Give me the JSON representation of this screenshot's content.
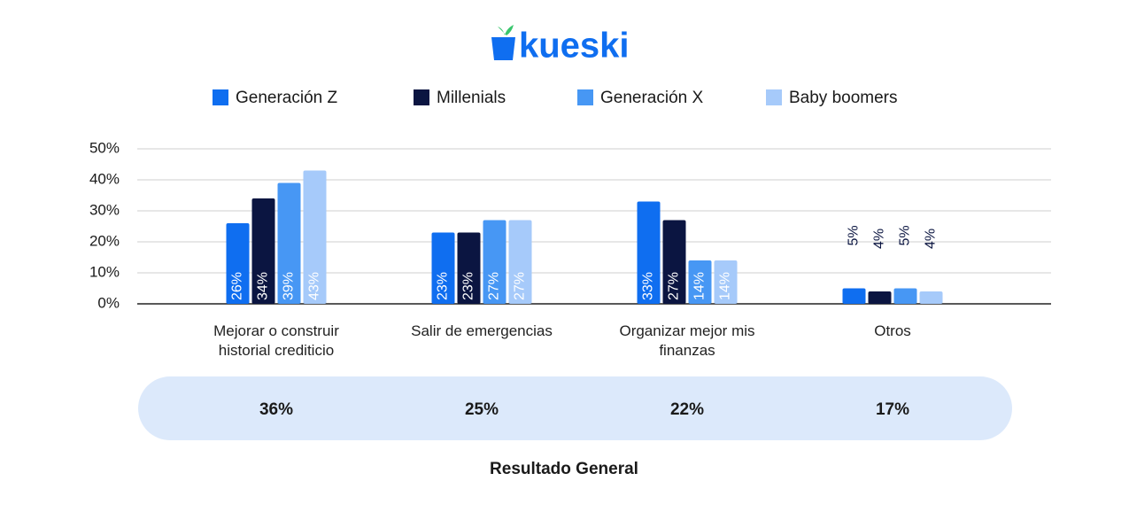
{
  "brand": "kueski",
  "chart_data": {
    "type": "bar",
    "categories": [
      "Mejorar o construir historial crediticio",
      "Salir de emergencias",
      "Organizar mejor mis finanzas",
      "Otros"
    ],
    "series": [
      {
        "name": "Generación Z",
        "color": "#0f6ef0",
        "values": [
          26,
          23,
          33,
          5
        ],
        "value_labels": [
          "26%",
          "23%",
          "33%",
          "5%"
        ]
      },
      {
        "name": "Millenials",
        "color": "#0b1541",
        "values": [
          34,
          23,
          27,
          4
        ],
        "value_labels": [
          "34%",
          "23%",
          "27%",
          "4%"
        ]
      },
      {
        "name": "Generación X",
        "color": "#4797f4",
        "values": [
          39,
          27,
          14,
          5
        ],
        "value_labels": [
          "39%",
          "27%",
          "14%",
          "5%"
        ]
      },
      {
        "name": "Baby boomers",
        "color": "#a6cafa",
        "values": [
          43,
          27,
          14,
          4
        ],
        "value_labels": [
          "43%",
          "27%",
          "14%",
          "4%"
        ]
      }
    ],
    "ylim": [
      0,
      50
    ],
    "yticks": [
      {
        "value": 0,
        "label": "0%"
      },
      {
        "value": 10,
        "label": "10%"
      },
      {
        "value": 20,
        "label": "20%"
      },
      {
        "value": 30,
        "label": "30%"
      },
      {
        "value": 40,
        "label": "40%"
      },
      {
        "value": 50,
        "label": "50%"
      }
    ],
    "grid": true,
    "legend": "top",
    "general": {
      "label": "Resultado General",
      "values": [
        36,
        25,
        22,
        17
      ],
      "value_labels": [
        "36%",
        "25%",
        "22%",
        "17%"
      ]
    }
  }
}
